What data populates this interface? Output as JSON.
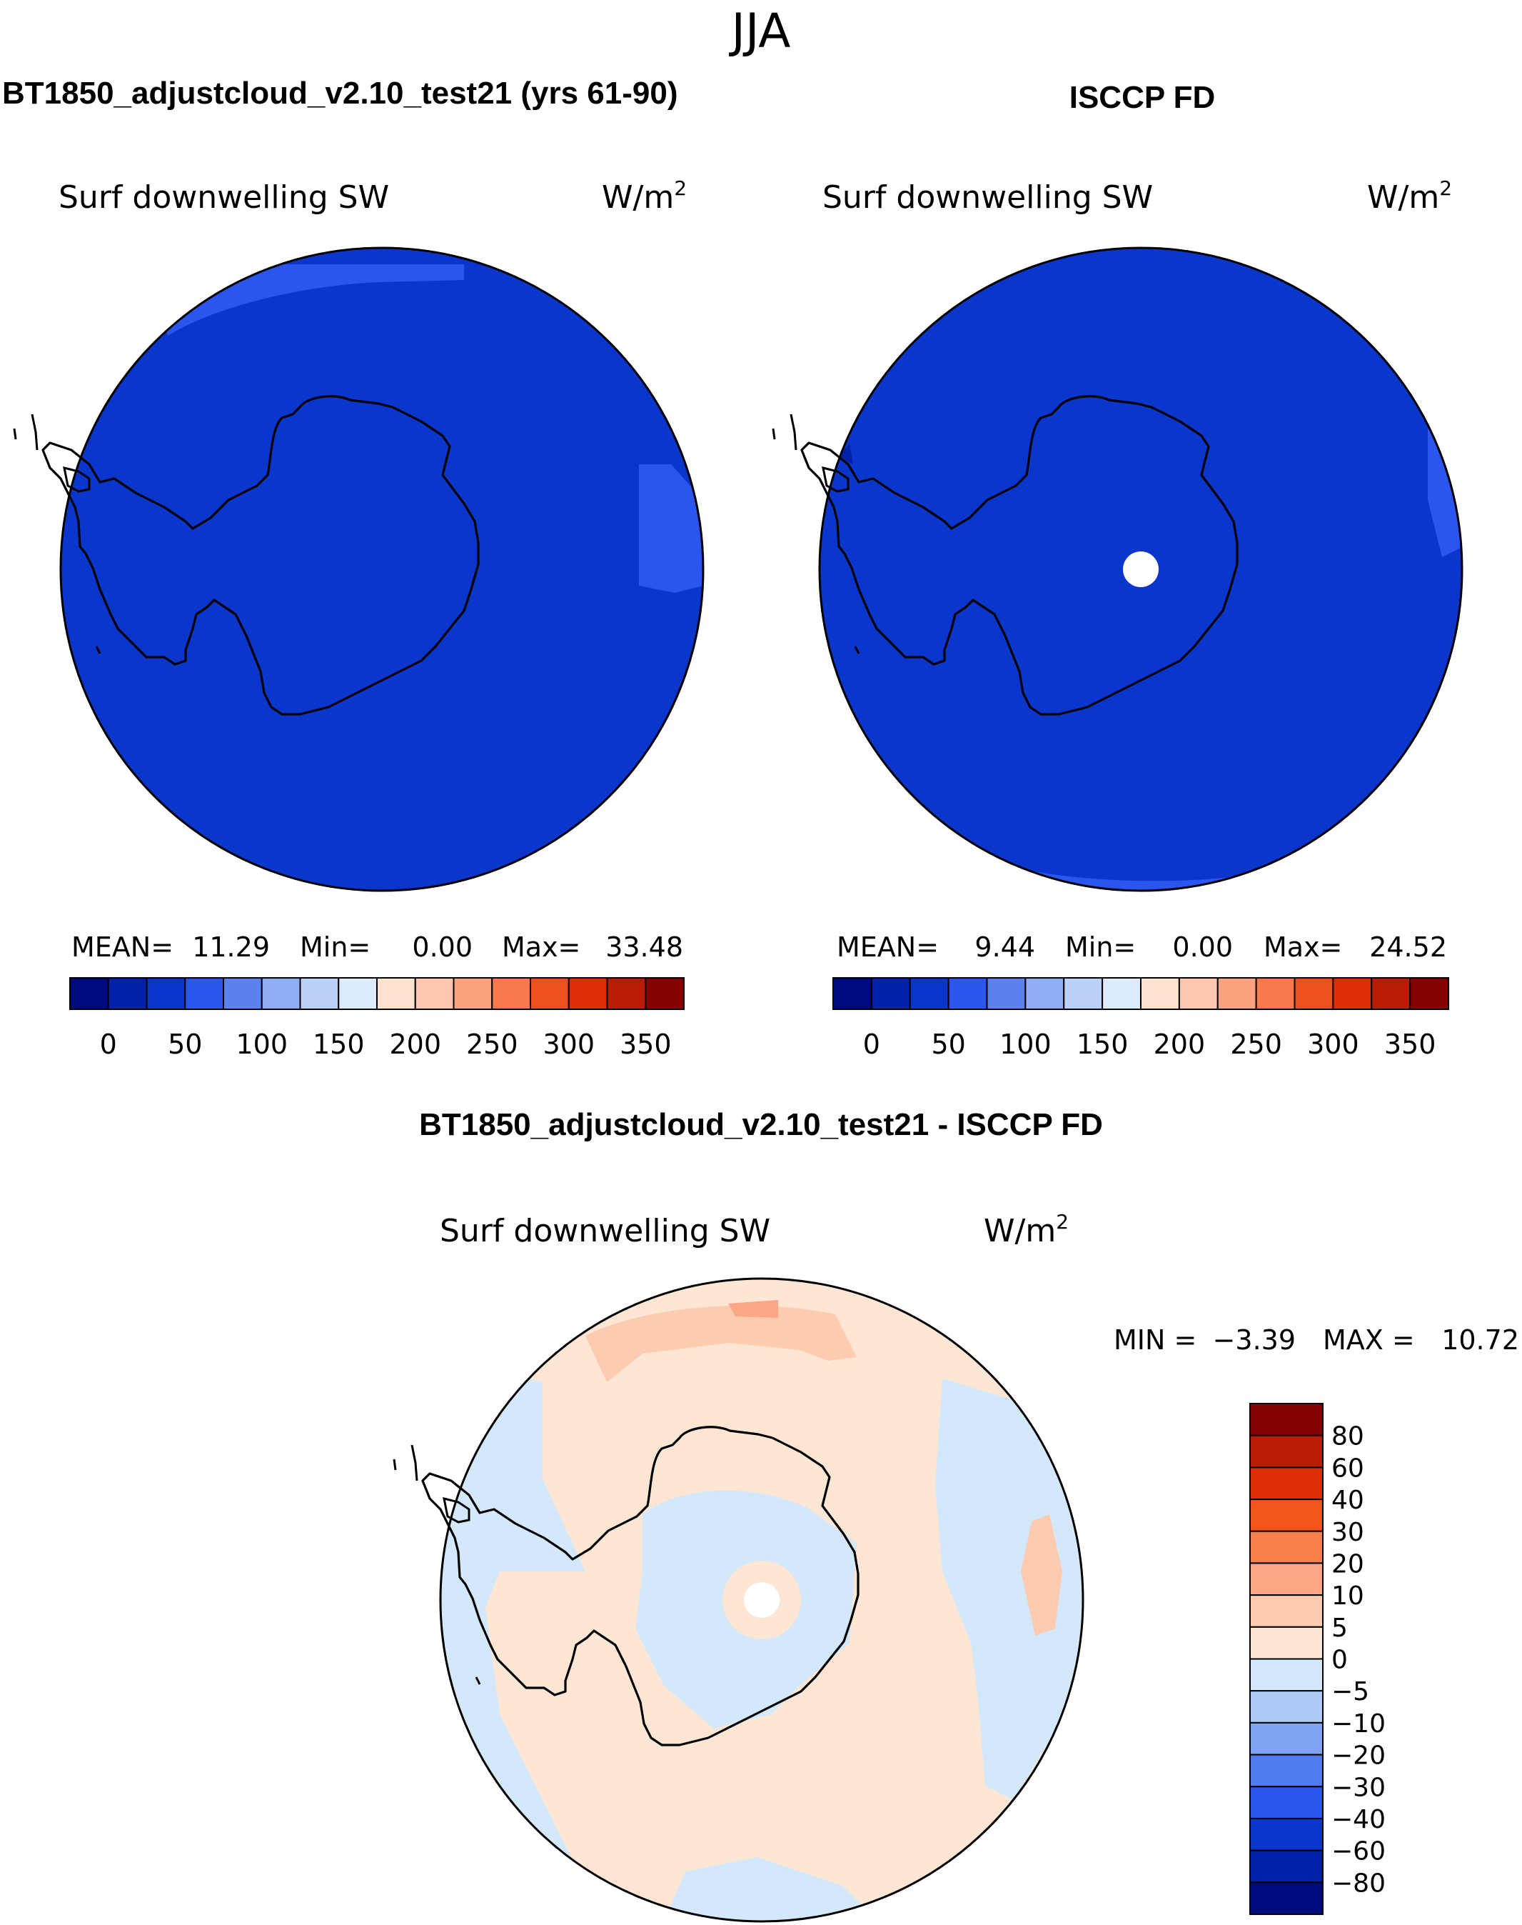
{
  "season": "JJA",
  "panels": {
    "model": {
      "title": "BT1850_adjustcloud_v2.10_test21 (yrs 61-90)",
      "variable": "Surf downwelling SW",
      "units": "W/m",
      "units_sup": "2",
      "stats": {
        "mean_label": "MEAN=",
        "mean": "11.29",
        "min_label": "Min=",
        "min": "0.00",
        "max_label": "Max=",
        "max": "33.48"
      }
    },
    "obs": {
      "title": "ISCCP FD",
      "variable": "Surf downwelling SW",
      "units": "W/m",
      "units_sup": "2",
      "stats": {
        "mean_label": "MEAN=",
        "mean": "9.44",
        "min_label": "Min=",
        "min": "0.00",
        "max_label": "Max=",
        "max": "24.52"
      }
    },
    "diff": {
      "title": "BT1850_adjustcloud_v2.10_test21 - ISCCP FD",
      "variable": "Surf downwelling SW",
      "units": "W/m",
      "units_sup": "2",
      "stats": {
        "min_label": "MIN =",
        "min": "−3.39",
        "max_label": "MAX =",
        "max": "10.72"
      }
    }
  },
  "chart_data": [
    {
      "type": "map",
      "projection": "south-polar-stereographic",
      "title": "BT1850_adjustcloud_v2.10_test21 (yrs 61-90)",
      "field": "Surf downwelling SW",
      "units": "W/m2",
      "dominant_level": "0-25",
      "colorbar": {
        "tick_labels": [
          "0",
          "50",
          "100",
          "150",
          "200",
          "250",
          "300",
          "350"
        ],
        "colors": [
          "#000a7f",
          "#0022aa",
          "#0a36cc",
          "#2a55ee",
          "#5c82f0",
          "#8faef3",
          "#bcd1f7",
          "#ddeafb",
          "#fde3cf",
          "#fcc7ae",
          "#fba37f",
          "#f9784d",
          "#ef4f1f",
          "#dc2d05",
          "#b81c05",
          "#850000"
        ]
      }
    },
    {
      "type": "map",
      "projection": "south-polar-stereographic",
      "title": "ISCCP FD",
      "field": "Surf downwelling SW",
      "units": "W/m2",
      "dominant_level": "0-25",
      "colorbar": {
        "tick_labels": [
          "0",
          "50",
          "100",
          "150",
          "200",
          "250",
          "300",
          "350"
        ],
        "colors": [
          "#000a7f",
          "#0022aa",
          "#0a36cc",
          "#2a55ee",
          "#5c82f0",
          "#8faef3",
          "#bcd1f7",
          "#ddeafb",
          "#fde3cf",
          "#fcc7ae",
          "#fba37f",
          "#f9784d",
          "#ef4f1f",
          "#dc2d05",
          "#b81c05",
          "#850000"
        ]
      }
    },
    {
      "type": "map",
      "projection": "south-polar-stereographic",
      "title": "BT1850_adjustcloud_v2.10_test21 - ISCCP FD",
      "field": "Surf downwelling SW",
      "units": "W/m2",
      "colorbar": {
        "tick_labels": [
          "80",
          "60",
          "40",
          "30",
          "20",
          "10",
          "5",
          "0",
          "−5",
          "−10",
          "−20",
          "−30",
          "−40",
          "−60",
          "−80"
        ],
        "colors": [
          "#850000",
          "#b81c05",
          "#dc2d05",
          "#f25519",
          "#f97f4b",
          "#fba684",
          "#fdcbb0",
          "#fde6d3",
          "#d4e8fb",
          "#aecbf6",
          "#7ea4f2",
          "#4f7cef",
          "#2a55ee",
          "#0a36cc",
          "#0022aa",
          "#000a7f"
        ]
      }
    }
  ]
}
